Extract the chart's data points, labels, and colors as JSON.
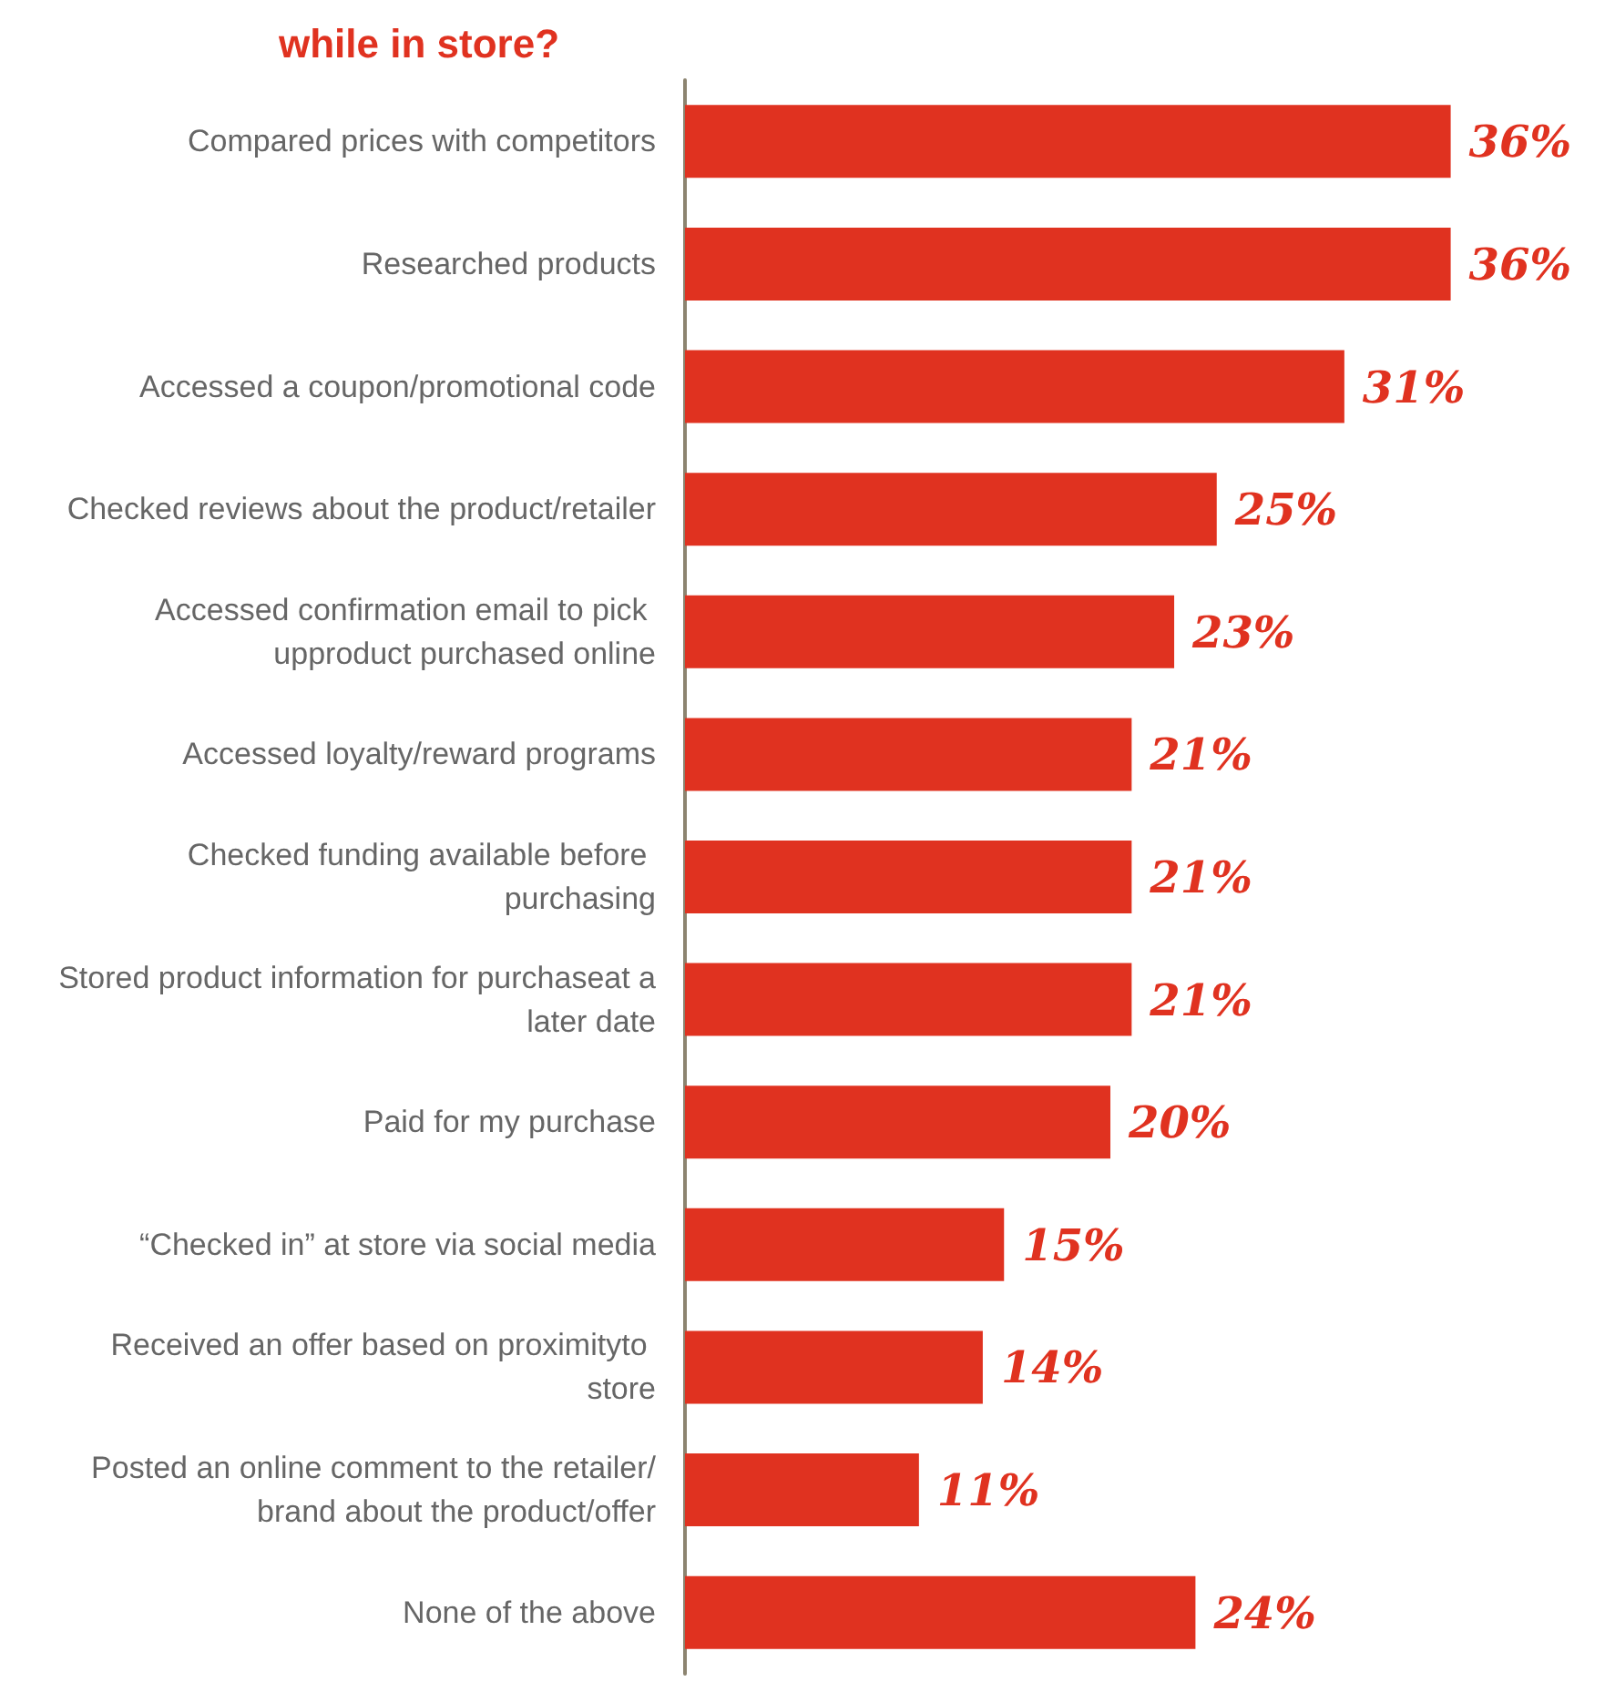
{
  "chart_data": {
    "type": "bar",
    "orientation": "horizontal",
    "title": "while in store?",
    "categories": [
      "Compared prices with competitors",
      "Researched products",
      "Accessed a coupon/promotional code",
      "Checked reviews about the product/retailer",
      "Accessed confirmation email to pick upproduct purchased online",
      "Accessed loyalty/reward programs",
      "Checked funding available before purchasing",
      "Stored product information for purchaseat a later date",
      "Paid for my purchase",
      "“Checked in” at store via social media",
      "Received an offer based on proximityto store",
      "Posted an online comment to the retailer/brand about the product/offer",
      "None of the above"
    ],
    "values": [
      36,
      36,
      31,
      25,
      23,
      21,
      21,
      21,
      20,
      15,
      14,
      11,
      24
    ],
    "value_labels": [
      "36%",
      "36%",
      "31%",
      "25%",
      "23%",
      "21%",
      "21%",
      "21%",
      "20%",
      "15%",
      "14%",
      "11%",
      "24%"
    ],
    "color": "#e03220"
  }
}
